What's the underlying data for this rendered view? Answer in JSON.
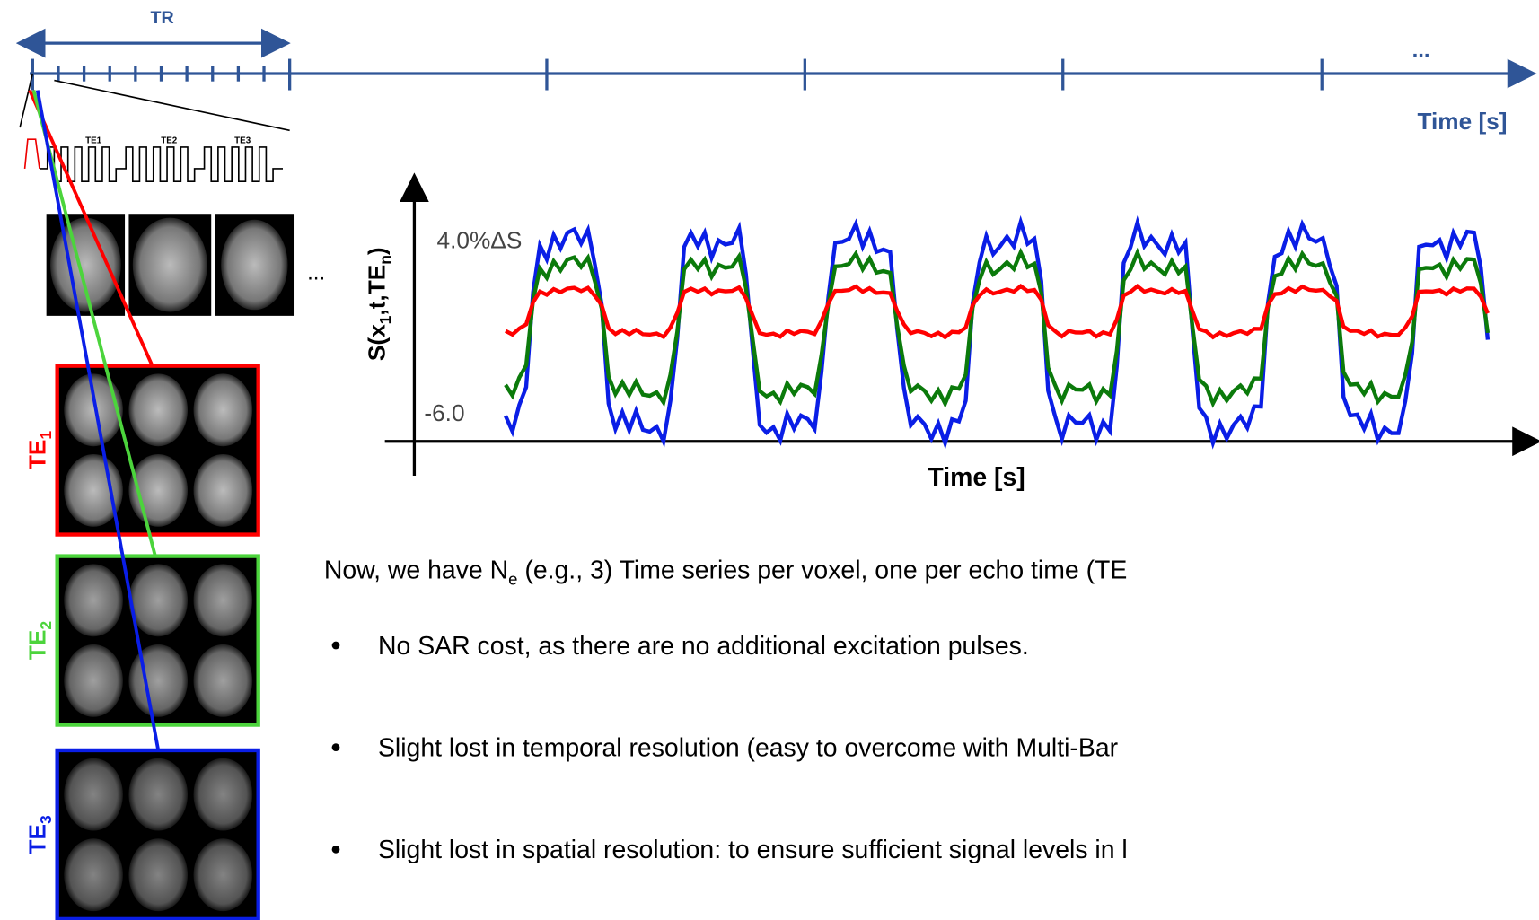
{
  "timeline": {
    "tr_label": "TR",
    "ellipsis": "...",
    "axis_label": "Time [s]"
  },
  "sequence": {
    "echo_labels": [
      "TE1",
      "TE2",
      "TE3"
    ]
  },
  "brains_ellipsis": "...",
  "plot": {
    "y_label": [
      "S(x",
      "1",
      ",t,TE",
      "n",
      ")"
    ],
    "top_label": "4.0%ΔS",
    "bottom_label": "-6.0",
    "x_label": "Time [s]"
  },
  "echo_panels": [
    {
      "label": "TE",
      "sub": "1",
      "color": "#ff0000"
    },
    {
      "label": "TE",
      "sub": "2",
      "color": "#4cd43c"
    },
    {
      "label": "TE",
      "sub": "3",
      "color": "#0a1ee6"
    }
  ],
  "text": {
    "intro": [
      "Now, we have N",
      "e",
      " (e.g., 3) Time series per voxel, one per echo time (TE"
    ],
    "bullets": [
      "No SAR cost, as there are no additional excitation pulses.",
      "Slight lost in temporal resolution (easy to overcome with Multi-Bar",
      "Slight lost in spatial resolution: to ensure sufficient signal levels in l"
    ]
  }
}
